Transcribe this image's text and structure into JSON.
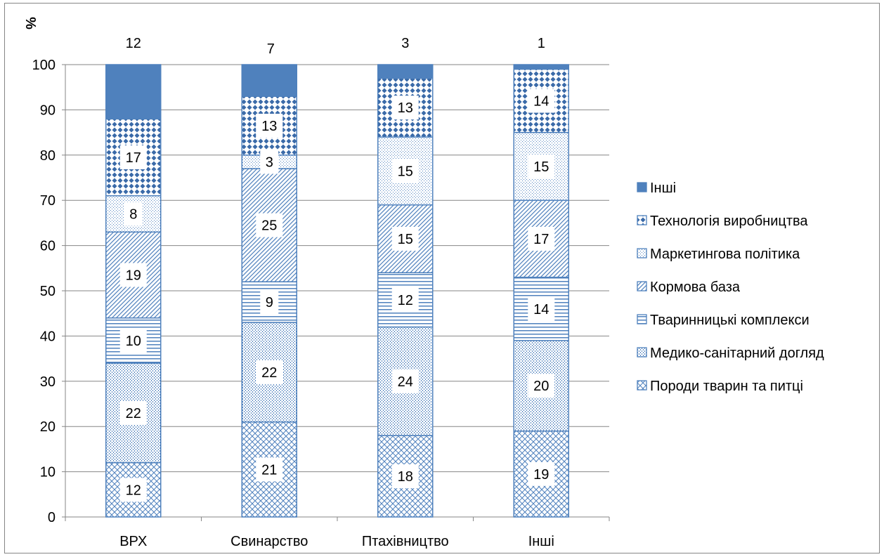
{
  "chart_data": {
    "type": "bar",
    "stacked": true,
    "ylabel": "%",
    "ylim": [
      0,
      100
    ],
    "yticks": [
      0,
      10,
      20,
      30,
      40,
      50,
      60,
      70,
      80,
      90,
      100
    ],
    "grid": true,
    "legend_position": "right",
    "categories": [
      "ВРХ",
      "Свинарство",
      "Птахівництво",
      "Інші"
    ],
    "series": [
      {
        "name": "Породи тварин та питці",
        "values": [
          12,
          21,
          18,
          19
        ],
        "pattern": "diagcross"
      },
      {
        "name": "Медико-санітарний догляд",
        "values": [
          22,
          22,
          24,
          20
        ],
        "pattern": "dotted"
      },
      {
        "name": "Тваринницькі комплекси",
        "values": [
          10,
          9,
          12,
          14
        ],
        "pattern": "hlines"
      },
      {
        "name": "Кормова база",
        "values": [
          19,
          25,
          15,
          17
        ],
        "pattern": "diag"
      },
      {
        "name": "Маркетингова політика",
        "values": [
          8,
          3,
          15,
          15
        ],
        "pattern": "grid"
      },
      {
        "name": "Технологія виробництва",
        "values": [
          17,
          13,
          13,
          14
        ],
        "pattern": "diamonds"
      },
      {
        "name": "Інші",
        "values": [
          12,
          7,
          3,
          1
        ],
        "pattern": "solid"
      }
    ],
    "colors": {
      "primary": "#4f81bd",
      "dark": "#3a6aa8",
      "grid": "#868686"
    }
  }
}
